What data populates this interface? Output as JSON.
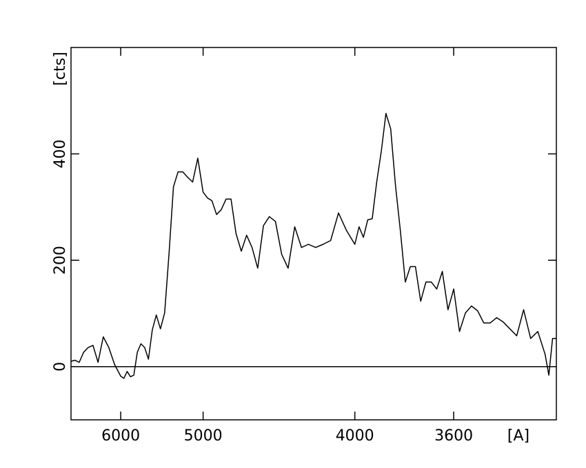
{
  "chart_data": {
    "type": "line",
    "xlabel": "[A]",
    "ylabel": "[cts]",
    "xscale": "inverse-square",
    "xlim": [
      7000,
      3290
    ],
    "ylim": [
      -100,
      600
    ],
    "xticks": [
      6000,
      5000,
      4000,
      3600
    ],
    "yticks": [
      0,
      200,
      400
    ],
    "reference_line": 0,
    "series": [
      {
        "color": "#000000",
        "x": [
          7000,
          6900,
          6800,
          6700,
          6600,
          6500,
          6400,
          6300,
          6200,
          6100,
          6000,
          5950,
          5900,
          5850,
          5800,
          5750,
          5700,
          5650,
          5600,
          5550,
          5500,
          5450,
          5400,
          5350,
          5300,
          5250,
          5200,
          5150,
          5100,
          5050,
          5000,
          4960,
          4920,
          4880,
          4840,
          4800,
          4760,
          4720,
          4680,
          4640,
          4600,
          4560,
          4520,
          4480,
          4440,
          4400,
          4360,
          4320,
          4280,
          4240,
          4200,
          4160,
          4120,
          4080,
          4040,
          4000,
          3980,
          3960,
          3940,
          3920,
          3900,
          3880,
          3860,
          3840,
          3820,
          3800,
          3780,
          3760,
          3740,
          3720,
          3700,
          3680,
          3660,
          3640,
          3620,
          3600,
          3580,
          3560,
          3540,
          3520,
          3500,
          3480,
          3460,
          3440,
          3420,
          3400,
          3380,
          3360,
          3340,
          3320,
          3310,
          3300,
          3290
        ],
        "values": [
          10,
          12,
          8,
          27,
          36,
          40,
          8,
          56,
          36,
          4,
          -18,
          -22,
          -9,
          -19,
          -16,
          27,
          43,
          36,
          14,
          69,
          97,
          71,
          101,
          211,
          338,
          366,
          366,
          356,
          347,
          392,
          328,
          317,
          312,
          286,
          295,
          315,
          315,
          250,
          217,
          247,
          224,
          185,
          265,
          282,
          273,
          211,
          185,
          263,
          224,
          230,
          224,
          230,
          237,
          289,
          256,
          230,
          263,
          243,
          276,
          278,
          347,
          405,
          476,
          447,
          340,
          256,
          159,
          188,
          188,
          123,
          159,
          159,
          146,
          179,
          107,
          146,
          66,
          101,
          114,
          105,
          82,
          82,
          92,
          84,
          71,
          58,
          107,
          53,
          66,
          23,
          -16,
          53,
          53
        ]
      }
    ]
  }
}
